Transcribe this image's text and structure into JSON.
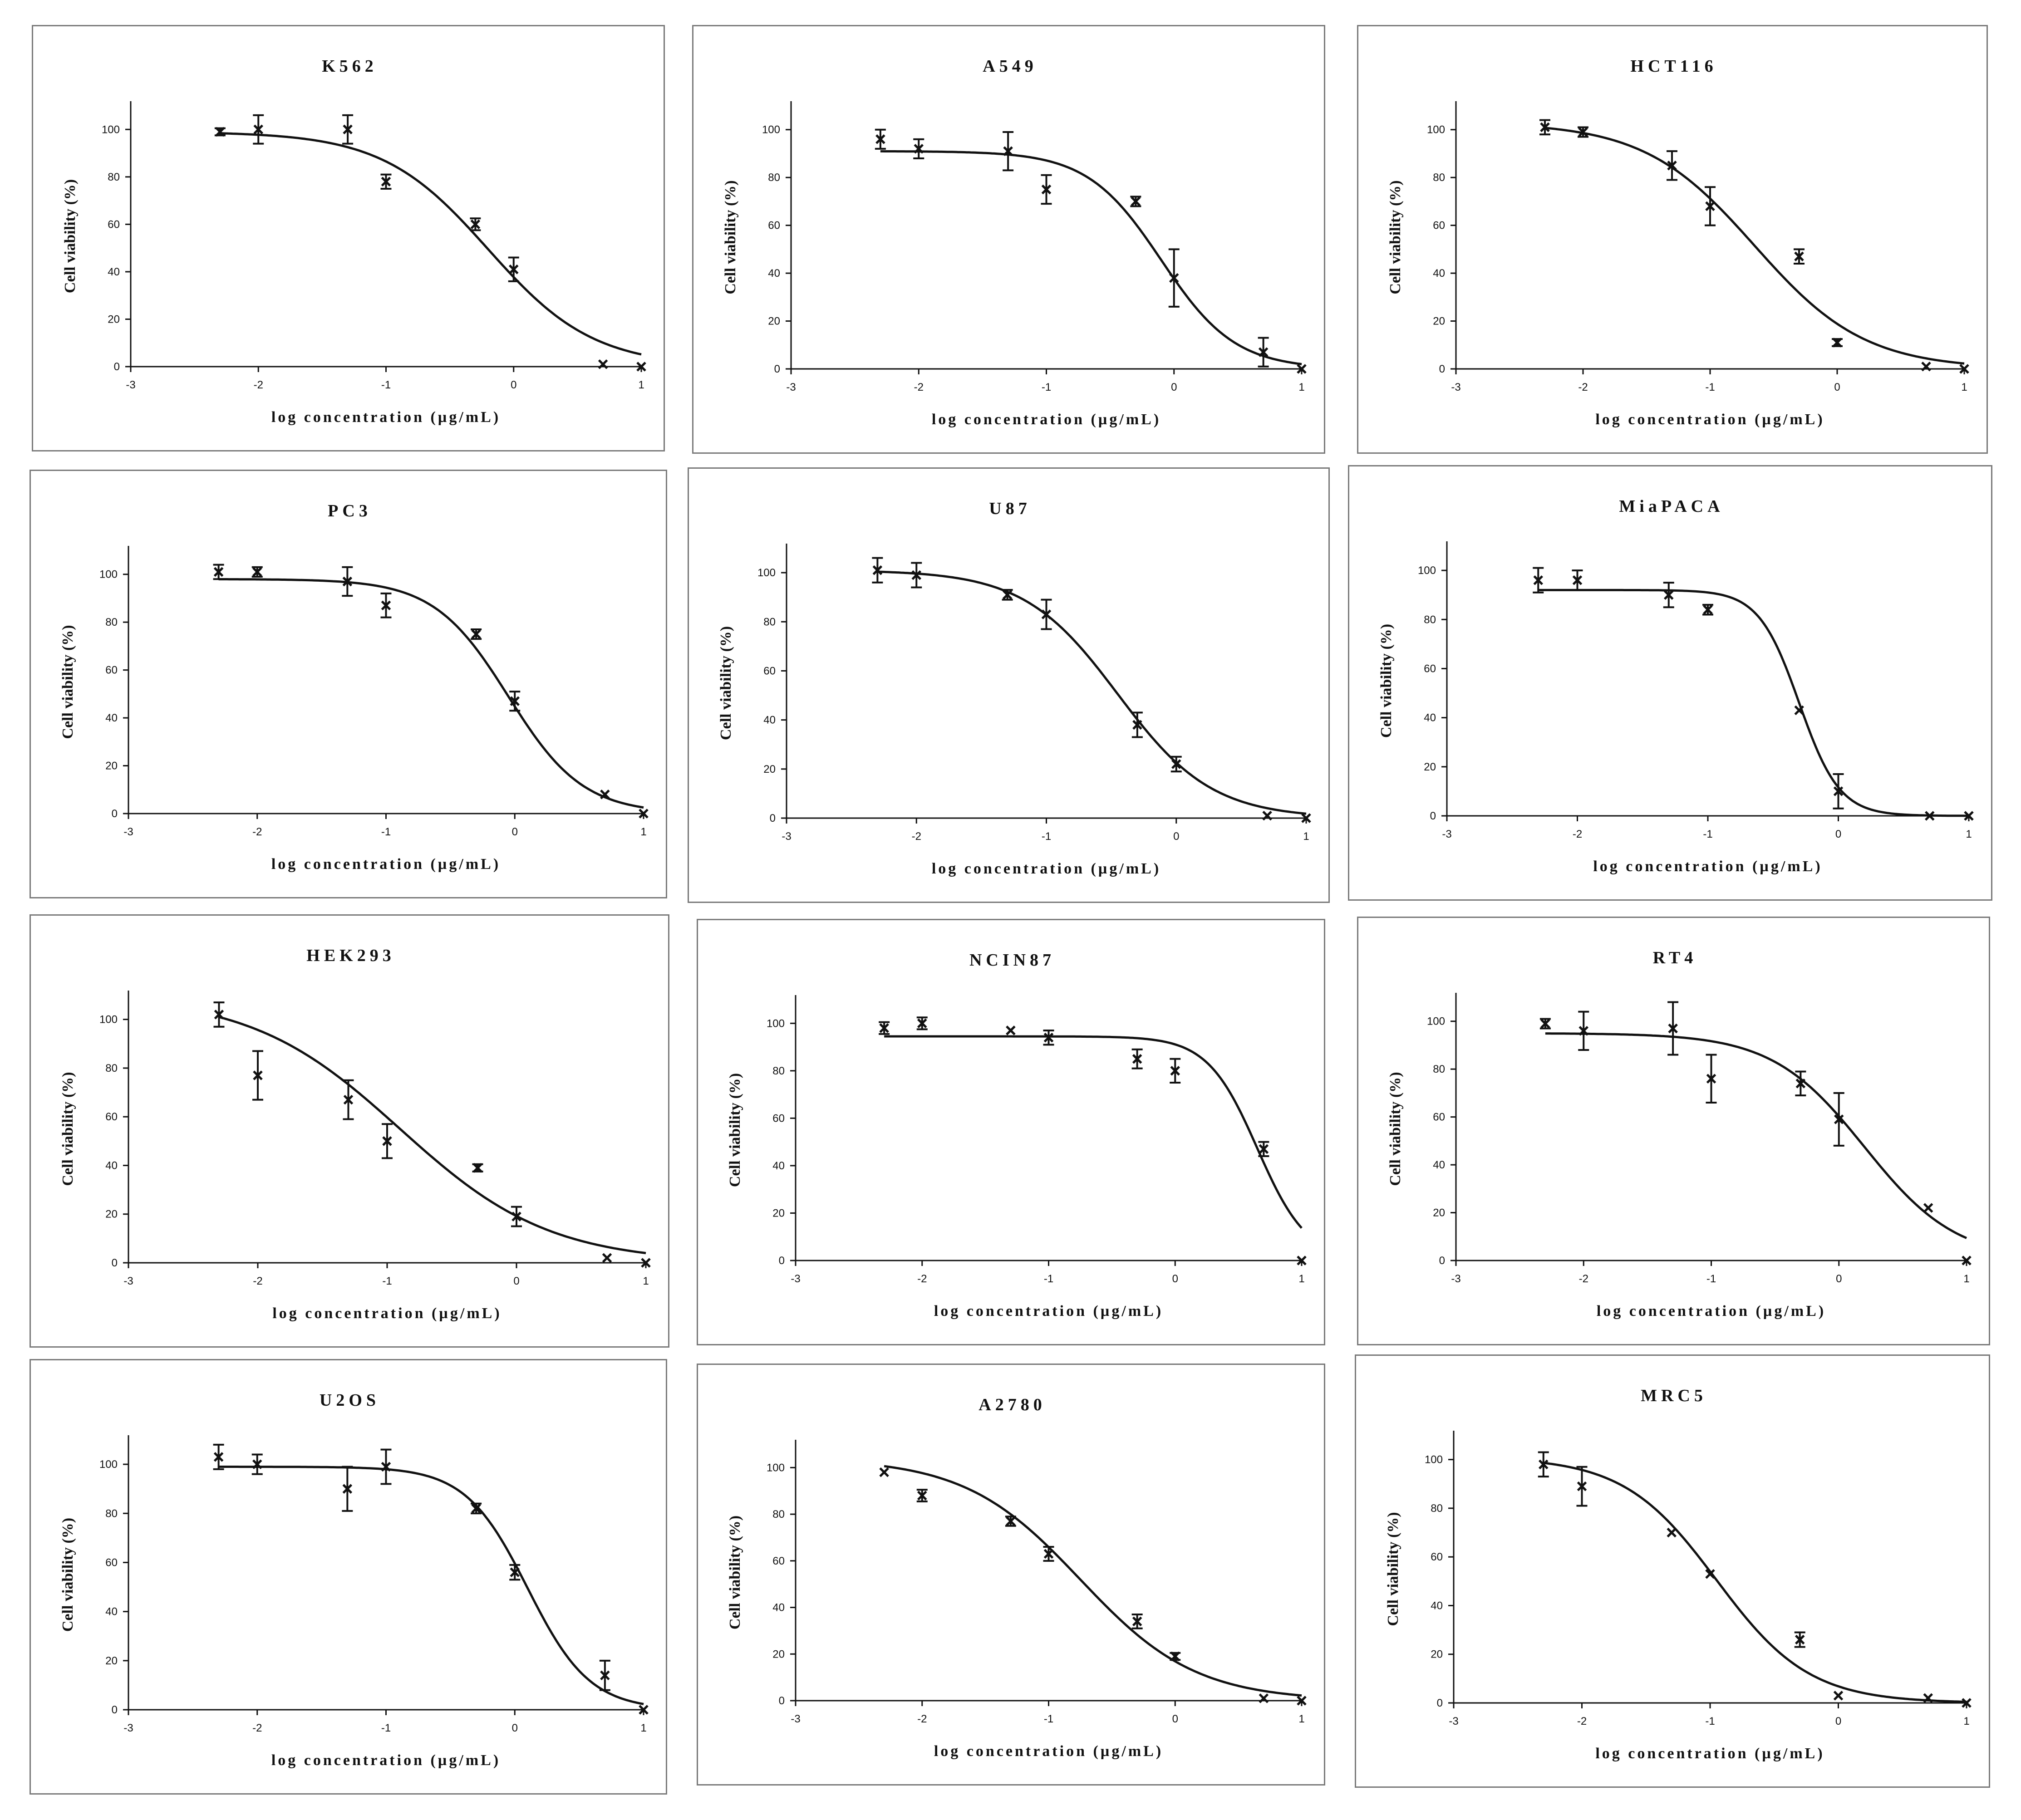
{
  "axis_labels": {
    "x": "log concentration (µg/mL)",
    "y": "Cell viability (%)"
  },
  "chart_data": [
    {
      "type": "scatter",
      "title": "K562",
      "xlim": [
        -3,
        1
      ],
      "ylim": [
        0,
        110
      ],
      "xticks": [
        -3,
        -2,
        -1,
        0,
        1
      ],
      "yticks": [
        0,
        20,
        40,
        60,
        80,
        100
      ],
      "points": [
        {
          "x": -2.3,
          "y": 99,
          "err": 1.5
        },
        {
          "x": -2.0,
          "y": 100,
          "err": 6
        },
        {
          "x": -1.3,
          "y": 100,
          "err": 6
        },
        {
          "x": -1.0,
          "y": 78,
          "err": 3
        },
        {
          "x": -0.3,
          "y": 60,
          "err": 2.5
        },
        {
          "x": 0.0,
          "y": 41,
          "err": 5
        },
        {
          "x": 0.7,
          "y": 1,
          "err": 0
        },
        {
          "x": 1.0,
          "y": 0,
          "err": 0
        }
      ],
      "fit": {
        "top": 99,
        "bottom": 0,
        "logec50": -0.2,
        "hill": 1.05
      }
    },
    {
      "type": "scatter",
      "title": "A549",
      "xlim": [
        -3,
        1
      ],
      "ylim": [
        0,
        110
      ],
      "xticks": [
        -3,
        -2,
        -1,
        0,
        1
      ],
      "yticks": [
        0,
        20,
        40,
        60,
        80,
        100
      ],
      "points": [
        {
          "x": -2.3,
          "y": 96,
          "err": 4
        },
        {
          "x": -2.0,
          "y": 92,
          "err": 4
        },
        {
          "x": -1.3,
          "y": 91,
          "err": 8
        },
        {
          "x": -1.0,
          "y": 75,
          "err": 6
        },
        {
          "x": -0.3,
          "y": 70,
          "err": 2
        },
        {
          "x": 0.0,
          "y": 38,
          "err": 12
        },
        {
          "x": 0.7,
          "y": 7,
          "err": 6
        },
        {
          "x": 1.0,
          "y": 0,
          "err": 0
        }
      ],
      "fit": {
        "top": 91,
        "bottom": 0,
        "logec50": -0.1,
        "hill": 1.5
      }
    },
    {
      "type": "scatter",
      "title": "HCT116",
      "xlim": [
        -3,
        1
      ],
      "ylim": [
        0,
        110
      ],
      "xticks": [
        -3,
        -2,
        -1,
        0,
        1
      ],
      "yticks": [
        0,
        20,
        40,
        60,
        80,
        100
      ],
      "points": [
        {
          "x": -2.3,
          "y": 101,
          "err": 3
        },
        {
          "x": -2.0,
          "y": 99,
          "err": 2
        },
        {
          "x": -1.3,
          "y": 85,
          "err": 6
        },
        {
          "x": -1.0,
          "y": 68,
          "err": 8
        },
        {
          "x": -0.3,
          "y": 47,
          "err": 3
        },
        {
          "x": 0.0,
          "y": 11,
          "err": 1.5
        },
        {
          "x": 0.7,
          "y": 1,
          "err": 0
        },
        {
          "x": 1.0,
          "y": 0,
          "err": 0
        }
      ],
      "fit": {
        "top": 103,
        "bottom": 0,
        "logec50": -0.65,
        "hill": 1.0
      }
    },
    {
      "type": "scatter",
      "title": "PC3",
      "xlim": [
        -3,
        1
      ],
      "ylim": [
        0,
        110
      ],
      "xticks": [
        -3,
        -2,
        -1,
        0,
        1
      ],
      "yticks": [
        0,
        20,
        40,
        60,
        80,
        100
      ],
      "points": [
        {
          "x": -2.3,
          "y": 101,
          "err": 3
        },
        {
          "x": -2.0,
          "y": 101,
          "err": 2
        },
        {
          "x": -1.3,
          "y": 97,
          "err": 6
        },
        {
          "x": -1.0,
          "y": 87,
          "err": 5
        },
        {
          "x": -0.3,
          "y": 75,
          "err": 2
        },
        {
          "x": 0.0,
          "y": 47,
          "err": 4
        },
        {
          "x": 0.7,
          "y": 8,
          "err": 0
        },
        {
          "x": 1.0,
          "y": 0,
          "err": 0
        }
      ],
      "fit": {
        "top": 98,
        "bottom": 0,
        "logec50": -0.05,
        "hill": 1.5
      }
    },
    {
      "type": "scatter",
      "title": "U87",
      "xlim": [
        -3,
        1
      ],
      "ylim": [
        0,
        110
      ],
      "xticks": [
        -3,
        -2,
        -1,
        0,
        1
      ],
      "yticks": [
        0,
        20,
        40,
        60,
        80,
        100
      ],
      "points": [
        {
          "x": -2.3,
          "y": 101,
          "err": 5
        },
        {
          "x": -2.0,
          "y": 99,
          "err": 5
        },
        {
          "x": -1.3,
          "y": 91,
          "err": 2
        },
        {
          "x": -1.0,
          "y": 83,
          "err": 6
        },
        {
          "x": -0.3,
          "y": 38,
          "err": 5
        },
        {
          "x": 0.0,
          "y": 22,
          "err": 3
        },
        {
          "x": 0.7,
          "y": 1,
          "err": 0
        },
        {
          "x": 1.0,
          "y": 0,
          "err": 0
        }
      ],
      "fit": {
        "top": 101,
        "bottom": 0,
        "logec50": -0.45,
        "hill": 1.2
      }
    },
    {
      "type": "scatter",
      "title": "MiaPACA",
      "xlim": [
        -3,
        1
      ],
      "ylim": [
        0,
        110
      ],
      "xticks": [
        -3,
        -2,
        -1,
        0,
        1
      ],
      "yticks": [
        0,
        20,
        40,
        60,
        80,
        100
      ],
      "points": [
        {
          "x": -2.3,
          "y": 96,
          "err": 5
        },
        {
          "x": -2.0,
          "y": 96,
          "err": 4
        },
        {
          "x": -1.3,
          "y": 90,
          "err": 5
        },
        {
          "x": -1.0,
          "y": 84,
          "err": 2
        },
        {
          "x": -0.3,
          "y": 43,
          "err": 0
        },
        {
          "x": 0.0,
          "y": 10,
          "err": 7
        },
        {
          "x": 0.7,
          "y": 0,
          "err": 0
        },
        {
          "x": 1.0,
          "y": 0,
          "err": 0
        }
      ],
      "fit": {
        "top": 92,
        "bottom": 0,
        "logec50": -0.3,
        "hill": 2.8
      }
    },
    {
      "type": "scatter",
      "title": "HEK293",
      "xlim": [
        -3,
        1
      ],
      "ylim": [
        0,
        110
      ],
      "xticks": [
        -3,
        -2,
        -1,
        0,
        1
      ],
      "yticks": [
        0,
        20,
        40,
        60,
        80,
        100
      ],
      "points": [
        {
          "x": -2.3,
          "y": 102,
          "err": 5
        },
        {
          "x": -2.0,
          "y": 77,
          "err": 10
        },
        {
          "x": -1.3,
          "y": 67,
          "err": 8
        },
        {
          "x": -1.0,
          "y": 50,
          "err": 7
        },
        {
          "x": -0.3,
          "y": 39,
          "err": 1.5
        },
        {
          "x": 0.0,
          "y": 19,
          "err": 4
        },
        {
          "x": 0.7,
          "y": 2,
          "err": 0
        },
        {
          "x": 1.0,
          "y": 0,
          "err": 0
        }
      ],
      "fit": {
        "top": 110,
        "bottom": 0,
        "logec50": -0.9,
        "hill": 0.75
      }
    },
    {
      "type": "scatter",
      "title": "NCIN87",
      "xlim": [
        -3,
        1
      ],
      "ylim": [
        0,
        110
      ],
      "xticks": [
        -3,
        -2,
        -1,
        0,
        1
      ],
      "yticks": [
        0,
        20,
        40,
        60,
        80,
        100
      ],
      "points": [
        {
          "x": -2.3,
          "y": 98,
          "err": 2.5
        },
        {
          "x": -2.0,
          "y": 100,
          "err": 2.5
        },
        {
          "x": -1.3,
          "y": 97,
          "err": 0
        },
        {
          "x": -1.0,
          "y": 94,
          "err": 3
        },
        {
          "x": -0.3,
          "y": 85,
          "err": 4
        },
        {
          "x": 0.0,
          "y": 80,
          "err": 5
        },
        {
          "x": 0.7,
          "y": 47,
          "err": 3
        },
        {
          "x": 1.0,
          "y": 0,
          "err": 0
        }
      ],
      "fit": {
        "top": 94.5,
        "bottom": 0,
        "logec50": 0.65,
        "hill": 2.2
      }
    },
    {
      "type": "scatter",
      "title": "RT4",
      "xlim": [
        -3,
        1
      ],
      "ylim": [
        0,
        110
      ],
      "xticks": [
        -3,
        -2,
        -1,
        0,
        1
      ],
      "yticks": [
        0,
        20,
        40,
        60,
        80,
        100
      ],
      "points": [
        {
          "x": -2.3,
          "y": 99,
          "err": 2
        },
        {
          "x": -2.0,
          "y": 96,
          "err": 8
        },
        {
          "x": -1.3,
          "y": 97,
          "err": 11
        },
        {
          "x": -1.0,
          "y": 76,
          "err": 10
        },
        {
          "x": -0.3,
          "y": 74,
          "err": 5
        },
        {
          "x": 0.0,
          "y": 59,
          "err": 11
        },
        {
          "x": 0.7,
          "y": 22,
          "err": 0
        },
        {
          "x": 1.0,
          "y": 0,
          "err": 0
        }
      ],
      "fit": {
        "top": 95,
        "bottom": 0,
        "logec50": 0.2,
        "hill": 1.2
      }
    },
    {
      "type": "scatter",
      "title": "U2OS",
      "xlim": [
        -3,
        1
      ],
      "ylim": [
        0,
        110
      ],
      "xticks": [
        -3,
        -2,
        -1,
        0,
        1
      ],
      "yticks": [
        0,
        20,
        40,
        60,
        80,
        100
      ],
      "points": [
        {
          "x": -2.3,
          "y": 103,
          "err": 5
        },
        {
          "x": -2.0,
          "y": 100,
          "err": 4
        },
        {
          "x": -1.3,
          "y": 90,
          "err": 9
        },
        {
          "x": -1.0,
          "y": 99,
          "err": 7
        },
        {
          "x": -0.3,
          "y": 82,
          "err": 2
        },
        {
          "x": 0.0,
          "y": 56,
          "err": 3
        },
        {
          "x": 0.7,
          "y": 14,
          "err": 6
        },
        {
          "x": 1.0,
          "y": 0,
          "err": 0
        }
      ],
      "fit": {
        "top": 99,
        "bottom": 0,
        "logec50": 0.1,
        "hill": 1.8
      }
    },
    {
      "type": "scatter",
      "title": "A2780",
      "xlim": [
        -3,
        1
      ],
      "ylim": [
        0,
        110
      ],
      "xticks": [
        -3,
        -2,
        -1,
        0,
        1
      ],
      "yticks": [
        0,
        20,
        40,
        60,
        80,
        100
      ],
      "points": [
        {
          "x": -2.3,
          "y": 98,
          "err": 0
        },
        {
          "x": -2.0,
          "y": 88,
          "err": 2.5
        },
        {
          "x": -1.3,
          "y": 77,
          "err": 2
        },
        {
          "x": -1.0,
          "y": 63,
          "err": 3
        },
        {
          "x": -0.3,
          "y": 34,
          "err": 3
        },
        {
          "x": 0.0,
          "y": 19,
          "err": 1.5
        },
        {
          "x": 0.7,
          "y": 1,
          "err": 0
        },
        {
          "x": 1.0,
          "y": 0,
          "err": 0
        }
      ],
      "fit": {
        "top": 104,
        "bottom": 0,
        "logec50": -0.75,
        "hill": 0.95
      }
    },
    {
      "type": "scatter",
      "title": "MRC5",
      "xlim": [
        -3,
        1
      ],
      "ylim": [
        0,
        110
      ],
      "xticks": [
        -3,
        -2,
        -1,
        0,
        1
      ],
      "yticks": [
        0,
        20,
        40,
        60,
        80,
        100
      ],
      "points": [
        {
          "x": -2.3,
          "y": 98,
          "err": 5
        },
        {
          "x": -2.0,
          "y": 89,
          "err": 8
        },
        {
          "x": -1.3,
          "y": 70,
          "err": 0
        },
        {
          "x": -1.0,
          "y": 53,
          "err": 0
        },
        {
          "x": -0.3,
          "y": 26,
          "err": 3
        },
        {
          "x": 0.0,
          "y": 3,
          "err": 0
        },
        {
          "x": 0.7,
          "y": 2,
          "err": 0
        },
        {
          "x": 1.0,
          "y": 0,
          "err": 0
        }
      ],
      "fit": {
        "top": 101,
        "bottom": 0,
        "logec50": -0.95,
        "hill": 1.2
      }
    }
  ]
}
